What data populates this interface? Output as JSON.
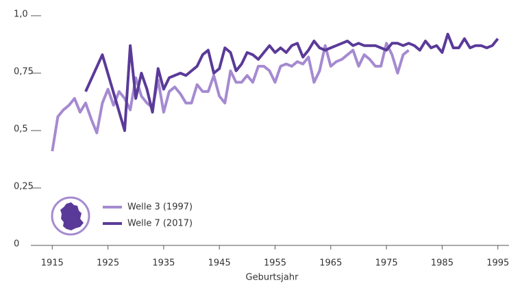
{
  "chart_data": {
    "type": "line",
    "x_label": "Geburtsjahr",
    "xlim": [
      1913,
      1997
    ],
    "xticks": [
      1915,
      1925,
      1935,
      1945,
      1955,
      1965,
      1975,
      1985,
      1995
    ],
    "ylim": [
      0,
      1
    ],
    "yticks": [
      0,
      {
        "value": 0.25,
        "label": "0,25"
      },
      {
        "value": 0.5,
        "label": "0,5"
      },
      {
        "value": 0.75,
        "label": "0,75"
      },
      {
        "value": 1,
        "label": "1,0"
      }
    ],
    "grid": false,
    "series": [
      {
        "name": "Welle 3 (1997)",
        "color": "#a58ad0",
        "x": [
          1915,
          1916,
          1917,
          1918,
          1919,
          1920,
          1921,
          1922,
          1923,
          1924,
          1925,
          1926,
          1927,
          1928,
          1929,
          1930,
          1931,
          1932,
          1933,
          1934,
          1935,
          1936,
          1937,
          1938,
          1939,
          1940,
          1941,
          1942,
          1943,
          1944,
          1945,
          1946,
          1947,
          1948,
          1949,
          1950,
          1951,
          1952,
          1953,
          1954,
          1955,
          1956,
          1957,
          1958,
          1959,
          1960,
          1961,
          1962,
          1963,
          1964,
          1965,
          1966,
          1967,
          1968,
          1969,
          1970,
          1971,
          1972,
          1973,
          1974,
          1975,
          1976,
          1977,
          1978,
          1979
        ],
        "values": [
          0.41,
          0.56,
          0.59,
          0.61,
          0.64,
          0.58,
          0.62,
          0.55,
          0.49,
          0.62,
          0.68,
          0.61,
          0.67,
          0.64,
          0.59,
          0.73,
          0.65,
          0.62,
          0.6,
          0.72,
          0.58,
          0.67,
          0.69,
          0.66,
          0.62,
          0.62,
          0.7,
          0.67,
          0.67,
          0.74,
          0.65,
          0.62,
          0.76,
          0.71,
          0.71,
          0.74,
          0.71,
          0.78,
          0.78,
          0.76,
          0.71,
          0.78,
          0.79,
          0.78,
          0.8,
          0.79,
          0.82,
          0.71,
          0.76,
          0.87,
          0.78,
          0.8,
          0.81,
          0.83,
          0.85,
          0.78,
          0.83,
          0.81,
          0.78,
          0.78,
          0.88,
          0.83,
          0.75,
          0.83,
          0.85
        ]
      },
      {
        "name": "Welle 7 (2017)",
        "color": "#5a3a98",
        "x": [
          1921,
          1924,
          1928,
          1929,
          1930,
          1931,
          1932,
          1933,
          1934,
          1935,
          1936,
          1937,
          1938,
          1939,
          1940,
          1941,
          1942,
          1943,
          1944,
          1945,
          1946,
          1947,
          1948,
          1949,
          1950,
          1951,
          1952,
          1953,
          1954,
          1955,
          1956,
          1957,
          1958,
          1959,
          1960,
          1961,
          1962,
          1963,
          1964,
          1965,
          1966,
          1967,
          1968,
          1969,
          1970,
          1971,
          1972,
          1973,
          1974,
          1975,
          1976,
          1977,
          1978,
          1979,
          1980,
          1981,
          1982,
          1983,
          1984,
          1985,
          1986,
          1987,
          1988,
          1989,
          1990,
          1991,
          1992,
          1993,
          1994,
          1995
        ],
        "values": [
          0.67,
          0.83,
          0.5,
          0.87,
          0.64,
          0.75,
          0.68,
          0.58,
          0.77,
          0.68,
          0.73,
          0.74,
          0.75,
          0.74,
          0.76,
          0.78,
          0.83,
          0.85,
          0.75,
          0.77,
          0.86,
          0.84,
          0.76,
          0.79,
          0.84,
          0.83,
          0.81,
          0.84,
          0.87,
          0.84,
          0.86,
          0.84,
          0.87,
          0.88,
          0.82,
          0.85,
          0.89,
          0.86,
          0.85,
          0.86,
          0.87,
          0.88,
          0.89,
          0.87,
          0.88,
          0.87,
          0.87,
          0.87,
          0.86,
          0.85,
          0.88,
          0.88,
          0.87,
          0.88,
          0.87,
          0.85,
          0.89,
          0.86,
          0.87,
          0.84,
          0.92,
          0.86,
          0.86,
          0.9,
          0.86,
          0.87,
          0.87,
          0.86,
          0.87,
          0.9
        ]
      }
    ]
  }
}
